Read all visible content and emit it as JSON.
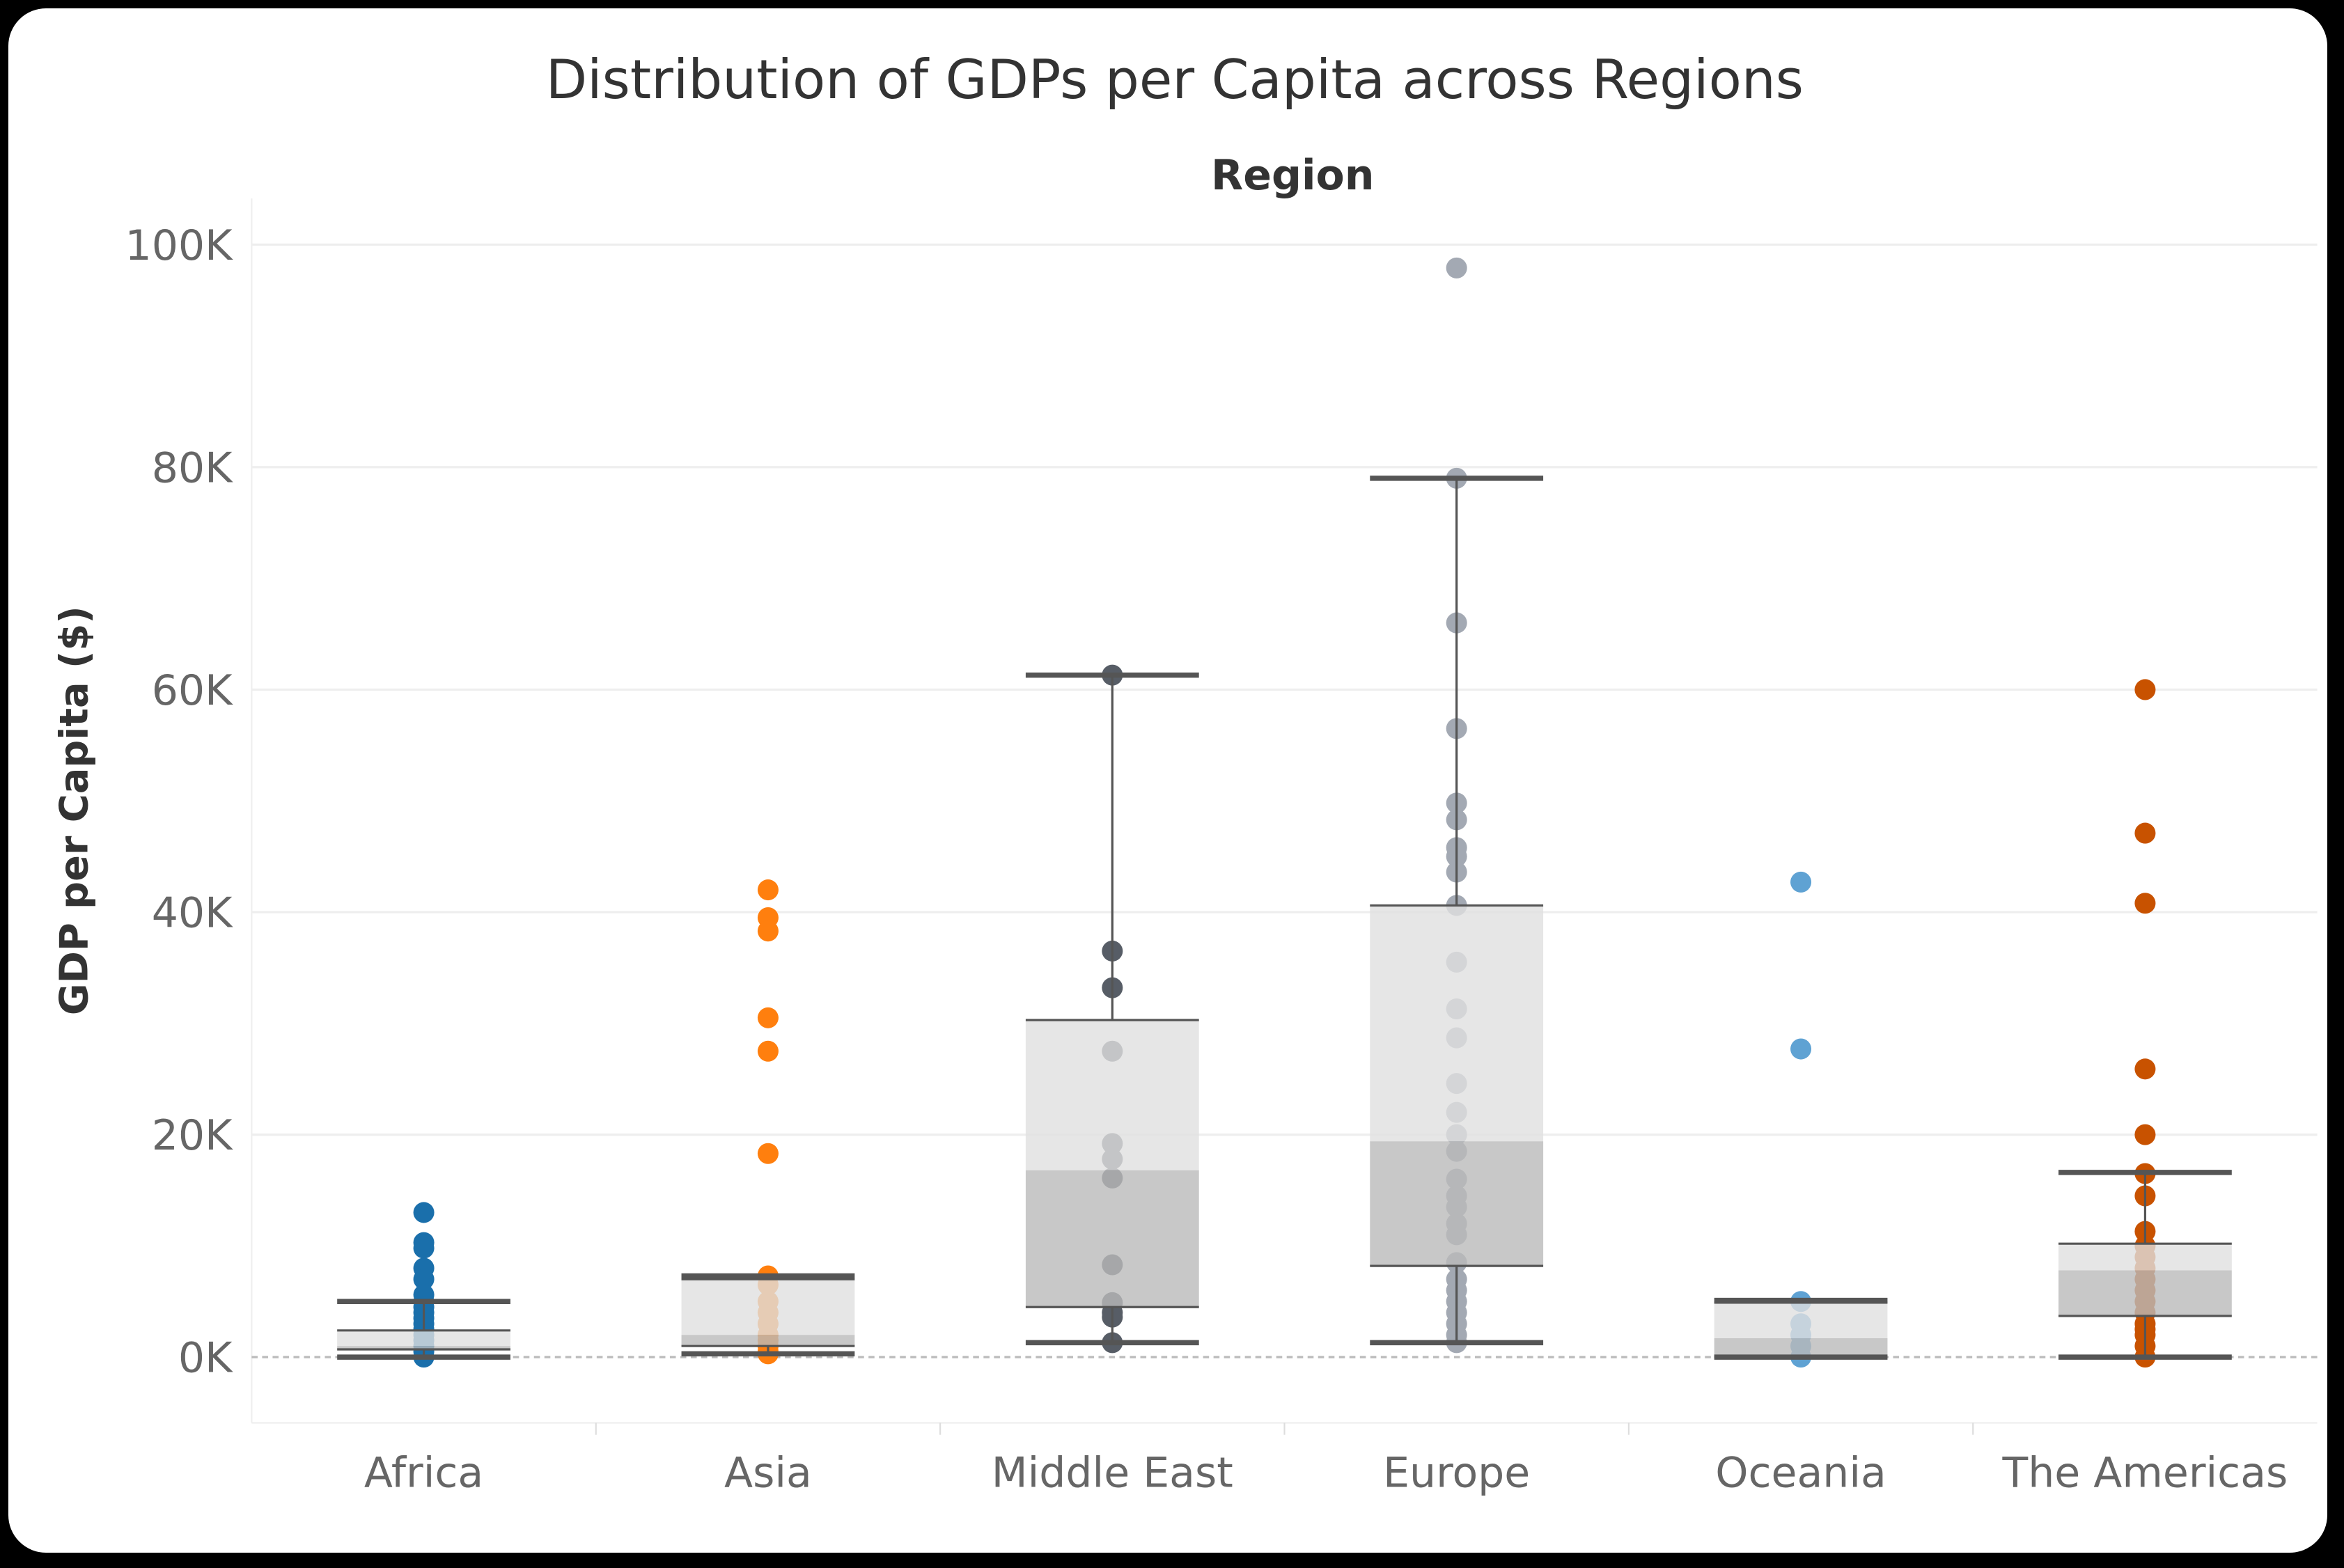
{
  "chart_data": {
    "type": "box-plot-with-points",
    "title": "Distribution of GDPs per Capita across Regions",
    "column_header": "Region",
    "xlabel": "",
    "ylabel": "GDP per Capita ($)",
    "ylim": [
      -6,
      103
    ],
    "y_unit": "thousands of $",
    "y_ticks": [
      0,
      20,
      40,
      60,
      80,
      100
    ],
    "y_tick_labels": [
      "0K",
      "20K",
      "40K",
      "60K",
      "80K",
      "100K"
    ],
    "grid": true,
    "categories": [
      "Africa",
      "Asia",
      "Middle East",
      "Europe",
      "Oceania",
      "The Americas"
    ],
    "colors": [
      "#1a6fab",
      "#ff7f0e",
      "#575d66",
      "#a3a9b3",
      "#5fa2d3",
      "#c85200"
    ],
    "box_colors": {
      "upper": "#e0e0e0",
      "lower": "#bababa",
      "whisker": "#555555"
    },
    "boxes": [
      {
        "lower_whisker": 0,
        "q1": 0.7,
        "median": 1.0,
        "q3": 2.4,
        "upper_whisker": 5.0
      },
      {
        "lower_whisker": 0.3,
        "q1": 1.0,
        "median": 2.0,
        "q3": 7.0,
        "upper_whisker": 7.3
      },
      {
        "lower_whisker": 1.3,
        "q1": 4.5,
        "median": 16.8,
        "q3": 30.3,
        "upper_whisker": 61.3
      },
      {
        "lower_whisker": 1.3,
        "q1": 8.2,
        "median": 19.4,
        "q3": 40.6,
        "upper_whisker": 79.0
      },
      {
        "lower_whisker": 0,
        "q1": 0,
        "median": 1.7,
        "q3": 4.9,
        "upper_whisker": 5.1
      },
      {
        "lower_whisker": 0,
        "q1": 3.7,
        "median": 7.8,
        "q3": 10.2,
        "upper_whisker": 16.6
      }
    ],
    "points": [
      [
        13,
        10.3,
        9.8,
        8,
        7,
        5.6,
        5,
        4.5,
        4,
        3.5,
        3,
        2.5,
        2,
        1.5,
        1,
        0.5,
        0
      ],
      [
        42,
        39.5,
        38.3,
        30.5,
        27.5,
        18.3,
        7.3,
        6.5,
        5,
        4,
        3,
        2,
        1.5,
        1,
        0.5,
        0.3
      ],
      [
        61.3,
        36.5,
        33.2,
        27.5,
        19.2,
        17.8,
        16.1,
        8.3,
        4.9,
        4.0,
        3.6,
        1.3
      ],
      [
        97.9,
        79.0,
        66,
        56.5,
        49.8,
        48.3,
        45.8,
        45,
        43.6,
        40.6,
        35.5,
        31.3,
        28.7,
        24.6,
        22,
        20,
        18.5,
        16,
        14.5,
        13.5,
        12,
        11,
        8.5,
        7,
        6,
        5,
        4,
        3,
        2,
        1.3
      ],
      [
        42.7,
        27.7,
        5,
        3,
        2,
        1,
        0
      ],
      [
        60,
        47.1,
        40.8,
        25.9,
        20,
        16.5,
        14.5,
        11.3,
        10,
        9,
        8,
        7,
        6,
        5,
        4,
        3,
        2.5,
        2,
        1,
        0
      ]
    ]
  }
}
